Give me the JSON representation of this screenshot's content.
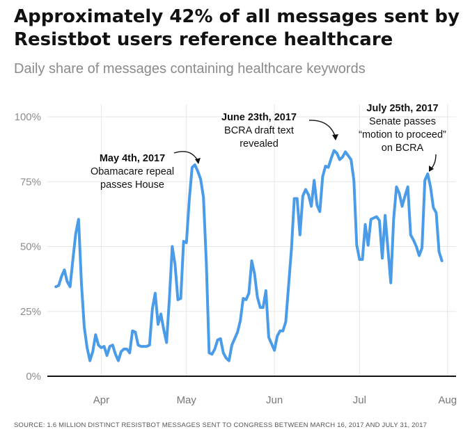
{
  "title": "Approximately 42% of all messages sent by Resistbot users reference healthcare",
  "subtitle": "Daily share of messages containing healthcare keywords",
  "source": "SOURCE: 1.6 MILLION DISTINCT RESISTBOT MESSAGES SENT TO CONGRESS BETWEEN MARCH 16, 2017 AND JULY 31, 2017",
  "colors": {
    "line": "#4a9be8",
    "grid": "#e6e6e6",
    "axis": "#111111"
  },
  "chart_data": {
    "type": "line",
    "title": "Approximately 42% of all messages sent by Resistbot users reference healthcare",
    "subtitle": "Daily share of messages containing healthcare keywords",
    "xlabel": "",
    "ylabel": "",
    "ylim": [
      0,
      100
    ],
    "xlim": [
      "2017-03-13",
      "2017-08-04"
    ],
    "yticks": [
      0,
      25,
      50,
      75,
      100
    ],
    "ytick_labels": [
      "0%",
      "25%",
      "50%",
      "75%",
      "100%"
    ],
    "xticks": [
      "2017-04-01",
      "2017-05-01",
      "2017-06-01",
      "2017-07-01",
      "2017-08-01"
    ],
    "xtick_labels": [
      "Apr",
      "May",
      "Jun",
      "Jul",
      "Aug"
    ],
    "grid": true,
    "series": [
      {
        "name": "",
        "points": [
          [
            "2017-03-16",
            34.5
          ],
          [
            "2017-03-17",
            35
          ],
          [
            "2017-03-18",
            38.5
          ],
          [
            "2017-03-19",
            41
          ],
          [
            "2017-03-20",
            36.5
          ],
          [
            "2017-03-21",
            34.5
          ],
          [
            "2017-03-22",
            45
          ],
          [
            "2017-03-23",
            55
          ],
          [
            "2017-03-24",
            60.5
          ],
          [
            "2017-03-25",
            36
          ],
          [
            "2017-03-26",
            19
          ],
          [
            "2017-03-27",
            11
          ],
          [
            "2017-03-28",
            6
          ],
          [
            "2017-03-29",
            9.5
          ],
          [
            "2017-03-30",
            16
          ],
          [
            "2017-03-31",
            12
          ],
          [
            "2017-04-01",
            11
          ],
          [
            "2017-04-02",
            11.5
          ],
          [
            "2017-04-03",
            8
          ],
          [
            "2017-04-04",
            11.5
          ],
          [
            "2017-04-05",
            12
          ],
          [
            "2017-04-06",
            8.5
          ],
          [
            "2017-04-07",
            6
          ],
          [
            "2017-04-08",
            9.5
          ],
          [
            "2017-04-09",
            10.5
          ],
          [
            "2017-04-10",
            10.5
          ],
          [
            "2017-04-11",
            9
          ],
          [
            "2017-04-12",
            17.5
          ],
          [
            "2017-04-13",
            17
          ],
          [
            "2017-04-14",
            12
          ],
          [
            "2017-04-15",
            11.5
          ],
          [
            "2017-04-16",
            11.5
          ],
          [
            "2017-04-17",
            11.5
          ],
          [
            "2017-04-18",
            12
          ],
          [
            "2017-04-19",
            26
          ],
          [
            "2017-04-20",
            32
          ],
          [
            "2017-04-21",
            20
          ],
          [
            "2017-04-22",
            24
          ],
          [
            "2017-04-23",
            18
          ],
          [
            "2017-04-24",
            13
          ],
          [
            "2017-04-25",
            30
          ],
          [
            "2017-04-26",
            50
          ],
          [
            "2017-04-27",
            43
          ],
          [
            "2017-04-28",
            29.5
          ],
          [
            "2017-04-29",
            30
          ],
          [
            "2017-04-30",
            52
          ],
          [
            "2017-05-01",
            51.5
          ],
          [
            "2017-05-02",
            68
          ],
          [
            "2017-05-03",
            80.5
          ],
          [
            "2017-05-04",
            81.5
          ],
          [
            "2017-05-05",
            79
          ],
          [
            "2017-05-06",
            76
          ],
          [
            "2017-05-07",
            69
          ],
          [
            "2017-05-08",
            44
          ],
          [
            "2017-05-09",
            9
          ],
          [
            "2017-05-10",
            8.5
          ],
          [
            "2017-05-11",
            10.5
          ],
          [
            "2017-05-12",
            14
          ],
          [
            "2017-05-13",
            14.5
          ],
          [
            "2017-05-14",
            9
          ],
          [
            "2017-05-15",
            7
          ],
          [
            "2017-05-16",
            6
          ],
          [
            "2017-05-17",
            12
          ],
          [
            "2017-05-18",
            14.5
          ],
          [
            "2017-05-19",
            17
          ],
          [
            "2017-05-20",
            21.5
          ],
          [
            "2017-05-21",
            30
          ],
          [
            "2017-05-22",
            29.5
          ],
          [
            "2017-05-23",
            32
          ],
          [
            "2017-05-24",
            44.5
          ],
          [
            "2017-05-25",
            39.5
          ],
          [
            "2017-05-26",
            30.5
          ],
          [
            "2017-05-27",
            26.5
          ],
          [
            "2017-05-28",
            26.5
          ],
          [
            "2017-05-29",
            33
          ],
          [
            "2017-05-30",
            15
          ],
          [
            "2017-05-31",
            12.5
          ],
          [
            "2017-06-01",
            10
          ],
          [
            "2017-06-02",
            15.5
          ],
          [
            "2017-06-03",
            17.5
          ],
          [
            "2017-06-04",
            17.5
          ],
          [
            "2017-06-05",
            21
          ],
          [
            "2017-06-06",
            35
          ],
          [
            "2017-06-07",
            49
          ],
          [
            "2017-06-08",
            68.5
          ],
          [
            "2017-06-09",
            68.5
          ],
          [
            "2017-06-10",
            54.5
          ],
          [
            "2017-06-11",
            69.5
          ],
          [
            "2017-06-12",
            72
          ],
          [
            "2017-06-13",
            70
          ],
          [
            "2017-06-14",
            65.5
          ],
          [
            "2017-06-15",
            75.5
          ],
          [
            "2017-06-16",
            66
          ],
          [
            "2017-06-17",
            63.5
          ],
          [
            "2017-06-18",
            77
          ],
          [
            "2017-06-19",
            81
          ],
          [
            "2017-06-20",
            80.5
          ],
          [
            "2017-06-21",
            84
          ],
          [
            "2017-06-22",
            87
          ],
          [
            "2017-06-23",
            86
          ],
          [
            "2017-06-24",
            83.5
          ],
          [
            "2017-06-25",
            84.5
          ],
          [
            "2017-06-26",
            86.5
          ],
          [
            "2017-06-27",
            85
          ],
          [
            "2017-06-28",
            83.5
          ],
          [
            "2017-06-29",
            75.5
          ],
          [
            "2017-06-30",
            50.5
          ],
          [
            "2017-07-01",
            45
          ],
          [
            "2017-07-02",
            45
          ],
          [
            "2017-07-03",
            58.5
          ],
          [
            "2017-07-04",
            50.5
          ],
          [
            "2017-07-05",
            60.5
          ],
          [
            "2017-07-06",
            61
          ],
          [
            "2017-07-07",
            61.5
          ],
          [
            "2017-07-08",
            60
          ],
          [
            "2017-07-09",
            45.5
          ],
          [
            "2017-07-10",
            62
          ],
          [
            "2017-07-11",
            49
          ],
          [
            "2017-07-12",
            36
          ],
          [
            "2017-07-13",
            60.5
          ],
          [
            "2017-07-14",
            73
          ],
          [
            "2017-07-15",
            70.5
          ],
          [
            "2017-07-16",
            65.5
          ],
          [
            "2017-07-17",
            69.5
          ],
          [
            "2017-07-18",
            73
          ],
          [
            "2017-07-19",
            54.5
          ],
          [
            "2017-07-20",
            52.5
          ],
          [
            "2017-07-21",
            50
          ],
          [
            "2017-07-22",
            46.5
          ],
          [
            "2017-07-23",
            49.5
          ],
          [
            "2017-07-24",
            75.5
          ],
          [
            "2017-07-25",
            78
          ],
          [
            "2017-07-26",
            73
          ],
          [
            "2017-07-27",
            65
          ],
          [
            "2017-07-28",
            63
          ],
          [
            "2017-07-29",
            48
          ],
          [
            "2017-07-30",
            44.5
          ]
        ]
      }
    ],
    "annotations": [
      {
        "date": "May 4th, 2017",
        "lines": [
          "Obamacare repeal",
          "passes House"
        ]
      },
      {
        "date": "June 23th, 2017",
        "lines": [
          "BCRA draft text",
          "revealed"
        ]
      },
      {
        "date": "July 25th, 2017",
        "lines": [
          "Senate passes",
          "“motion to proceed”",
          "on BCRA"
        ]
      }
    ]
  }
}
